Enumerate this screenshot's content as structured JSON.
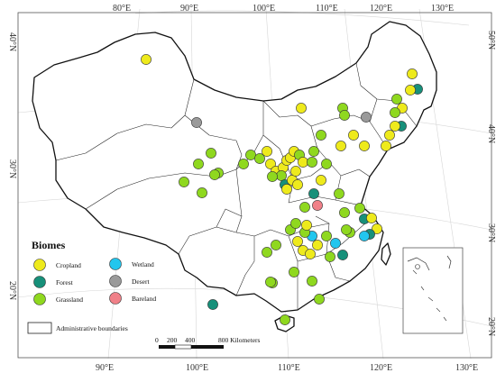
{
  "map": {
    "graticule_labels": {
      "top": [
        "80°E",
        "90°E",
        "100°E",
        "110°E",
        "120°E",
        "130°E"
      ],
      "bottom": [
        "90°E",
        "100°E",
        "110°E",
        "120°E",
        "130°E"
      ],
      "left": [
        "40°N",
        "30°N",
        "20°N"
      ],
      "right": [
        "50°N",
        "40°N",
        "30°N",
        "20°N"
      ]
    },
    "legend": {
      "title": "Biomes",
      "items": [
        {
          "label": "Cropland",
          "color": "#eeea1c"
        },
        {
          "label": "Forest",
          "color": "#17907a"
        },
        {
          "label": "Grassland",
          "color": "#8fd81f"
        },
        {
          "label": "Wetland",
          "color": "#22c6ee"
        },
        {
          "label": "Desert",
          "color": "#9a9a9a"
        },
        {
          "label": "Bareland",
          "color": "#f08088"
        }
      ],
      "boundary_label": "Administrative boundaries"
    },
    "scale_bar": {
      "ticks": [
        "0",
        "200",
        "400",
        "800 Kilometers"
      ]
    }
  }
}
